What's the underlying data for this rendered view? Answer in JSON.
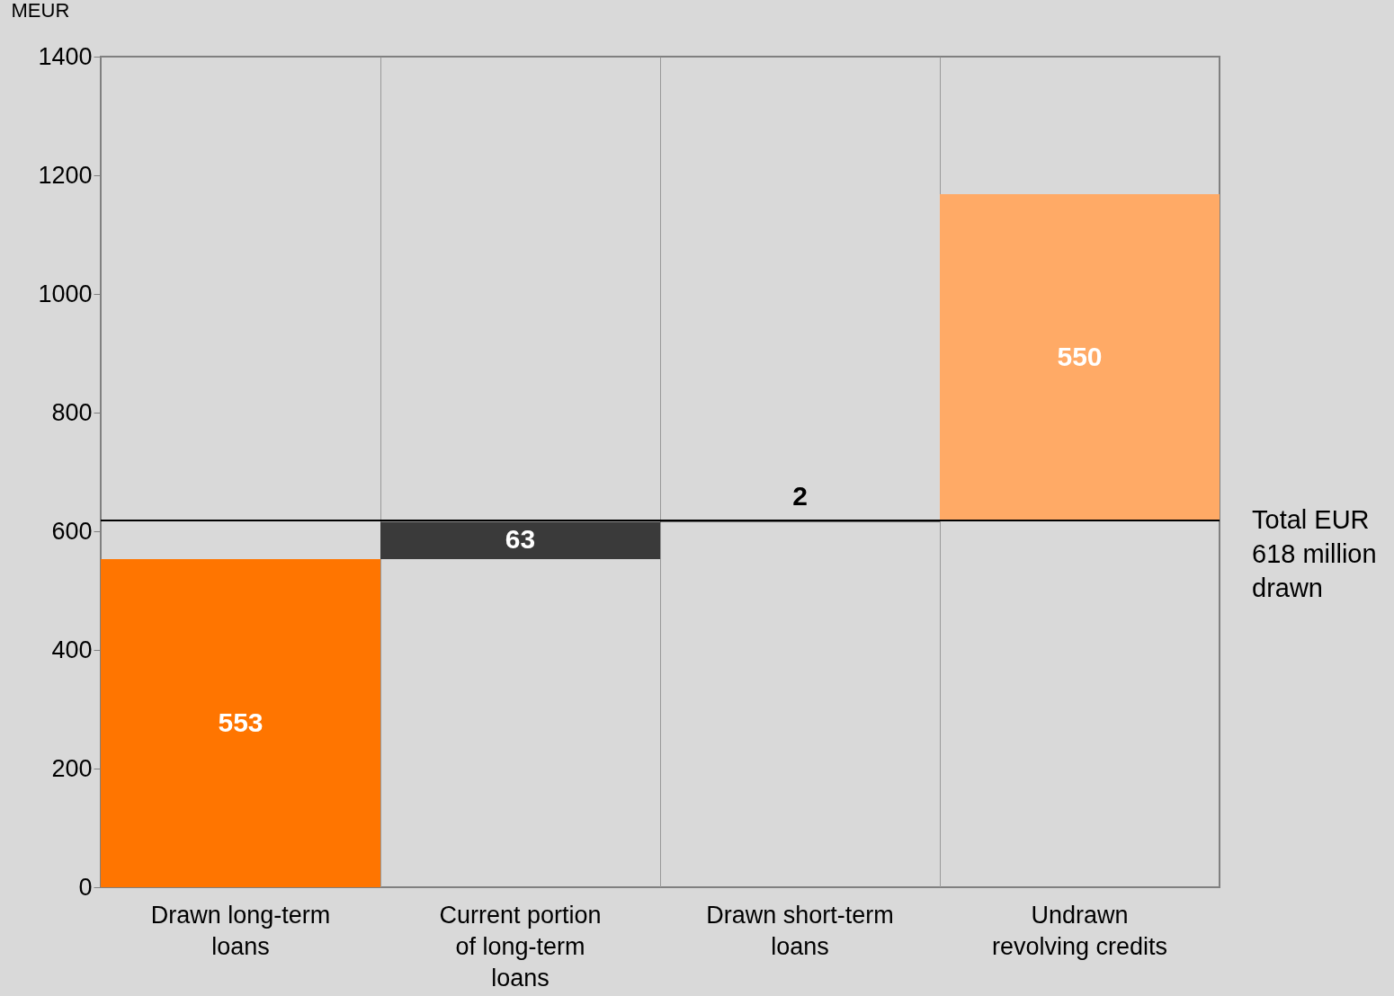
{
  "chart_data": {
    "type": "bar",
    "ylabel": "MEUR",
    "categories": [
      "Drawn long-term loans",
      "Current portion of long-term loans",
      "Drawn short-term loans",
      "Undrawn revolving credits"
    ],
    "values": [
      553,
      63,
      2,
      550
    ],
    "base": [
      0,
      553,
      616,
      618
    ],
    "colors": [
      "#ff7500",
      "#3a3a3a",
      "#000000",
      "#ffaa66"
    ],
    "ylim": [
      0,
      1400
    ],
    "yticks": [
      0,
      200,
      400,
      600,
      800,
      1000,
      1200,
      1400
    ],
    "grid": "x",
    "data_labels": true,
    "legend": false,
    "ref_lines": [
      {
        "axis": "y",
        "value": 618,
        "label": "Total EUR 618 million drawn",
        "color": "#000000"
      }
    ]
  }
}
